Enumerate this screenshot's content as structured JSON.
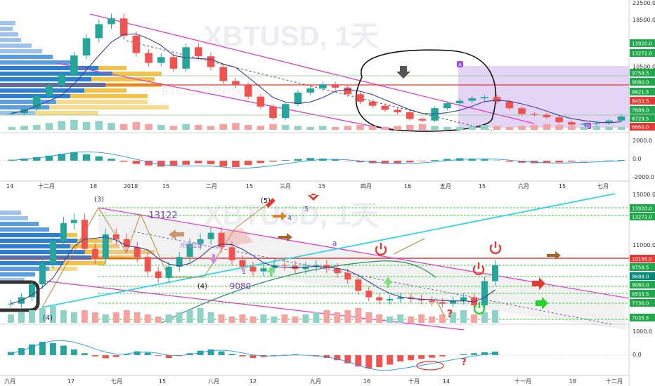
{
  "chart_data": [
    {
      "type": "candlestick",
      "title": "XBTUSD, 1天",
      "subtitle": "BTC/USD Perpetual",
      "x_ticks": [
        "14",
        "十二月",
        "18",
        "2018",
        "15",
        "二月",
        "15",
        "三月",
        "15",
        "四月",
        "16",
        "五月",
        "15",
        "六月",
        "15",
        "七月"
      ],
      "price_axis_ticks": [
        "22500.0",
        "18500.0",
        "10500.0",
        "7500.0"
      ],
      "price_labels": [
        {
          "value": "13920.0",
          "color": "#1fa84b"
        },
        {
          "value": "13272.0",
          "color": "#1fa84b"
        },
        {
          "value": "9758.5",
          "color": "#1fa84b"
        },
        {
          "value": "9080.0",
          "color": "#1fa84b"
        },
        {
          "value": "8821.5",
          "color": "#1fa84b"
        },
        {
          "value": "8433.5",
          "color": "#e53935"
        },
        {
          "value": "7688.0",
          "color": "#1fa84b"
        },
        {
          "value": "6729.5",
          "color": "#1fa84b"
        },
        {
          "value": "6668.0",
          "color": "#e53935"
        }
      ],
      "macd_ticks": [
        "2000.0",
        "0.0",
        "-2000.0"
      ],
      "annotations": [
        "A",
        "D"
      ],
      "close_series": [
        7800,
        8300,
        9900,
        11200,
        12500,
        14800,
        16900,
        18600,
        19300,
        17200,
        15100,
        13900,
        14600,
        13200,
        15800,
        14700,
        13400,
        11700,
        11200,
        9800,
        8600,
        7200,
        8900,
        10300,
        10800,
        11300,
        10900,
        10100,
        9200,
        8700,
        8200,
        7900,
        7100,
        6900,
        8400,
        9000,
        9300,
        9600,
        9750,
        9200,
        8400,
        7700,
        7600,
        7300,
        6700,
        6400,
        6500,
        6600,
        6900,
        7400
      ],
      "macd_hist": [
        120,
        260,
        420,
        600,
        820,
        980,
        760,
        520,
        240,
        -120,
        -380,
        -560,
        -700,
        -620,
        -480,
        -300,
        -420,
        -680,
        -760,
        -520,
        -280,
        -120,
        80,
        200,
        320,
        260,
        140,
        -40,
        -180,
        -300,
        -360,
        -280,
        -200,
        -60,
        90,
        210,
        300,
        240,
        160,
        40,
        -120,
        -240,
        -300,
        -260,
        -200,
        -120,
        -60,
        0,
        40,
        80
      ],
      "volume": [
        3,
        4,
        5,
        7,
        9,
        10,
        8,
        9,
        7,
        6,
        8,
        6,
        5,
        4,
        6,
        5,
        4,
        6,
        7,
        5,
        4,
        6,
        5,
        4,
        3,
        4,
        3,
        4,
        5,
        4,
        3,
        4,
        5,
        6,
        4,
        3,
        3,
        4,
        5,
        4,
        3,
        4,
        5,
        6,
        5,
        4,
        3,
        4,
        3,
        3
      ]
    },
    {
      "type": "candlestick",
      "title": "XBTUSD, 1天",
      "x_ticks": [
        "六月",
        "17",
        "七月",
        "15",
        "八月",
        "12",
        "九月",
        "16",
        "十月",
        "14",
        "十一月",
        "18",
        "十二月"
      ],
      "price_axis_ticks": [
        "15000.0",
        "11000.0"
      ],
      "price_labels": [
        {
          "value": "13920.0",
          "color": "#1fa84b"
        },
        {
          "value": "13272.0",
          "color": "#1fa84b"
        },
        {
          "value": "10195.0",
          "color": "#e53935"
        },
        {
          "value": "9758.5",
          "color": "#1fa84b"
        },
        {
          "value": "9688.0",
          "color": "#00897b"
        },
        {
          "value": "9080.0",
          "color": "#1fa84b"
        },
        {
          "value": "8533.5",
          "color": "#1fa84b"
        },
        {
          "value": "7736.0",
          "color": "#1fa84b"
        },
        {
          "value": "7035.5",
          "color": "#1fa84b"
        }
      ],
      "macd_ticks": [
        "1000.0",
        "0.0"
      ],
      "wave_labels": [
        "(3)",
        "(5)",
        "5",
        "4",
        "(4)",
        "1",
        "2",
        "(4)"
      ],
      "text_annotations": [
        "13122",
        "9080",
        "a",
        "ma18"
      ],
      "close_series": [
        7900,
        8300,
        9100,
        10400,
        11800,
        12900,
        13100,
        11300,
        10700,
        12200,
        11900,
        11400,
        10800,
        9900,
        9500,
        10200,
        10800,
        11600,
        11900,
        12300,
        11400,
        10600,
        10200,
        9900,
        10100,
        10300,
        10250,
        10050,
        10200,
        10300,
        10100,
        9800,
        9400,
        8700,
        8300,
        8100,
        8200,
        8300,
        8200,
        8100,
        8000,
        7900,
        8100,
        8300,
        7800,
        9300,
        10300
      ],
      "macd_hist": [
        100,
        220,
        340,
        420,
        380,
        300,
        180,
        60,
        -40,
        -100,
        -60,
        30,
        120,
        80,
        -20,
        -90,
        -30,
        60,
        140,
        180,
        120,
        40,
        -40,
        -90,
        -60,
        -20,
        10,
        30,
        -10,
        -40,
        -90,
        -160,
        -260,
        -360,
        -420,
        -380,
        -300,
        -200,
        -160,
        -120,
        -80,
        -40,
        0,
        30,
        60,
        90,
        110
      ],
      "volume": [
        4,
        5,
        6,
        7,
        8,
        6,
        5,
        6,
        5,
        4,
        5,
        6,
        5,
        4,
        3,
        4,
        5,
        6,
        7,
        5,
        4,
        3,
        4,
        3,
        4,
        3,
        4,
        3,
        4,
        5,
        6,
        5,
        6,
        7,
        5,
        4,
        3,
        4,
        3,
        4,
        3,
        4,
        5,
        6,
        4,
        5,
        6
      ]
    }
  ]
}
